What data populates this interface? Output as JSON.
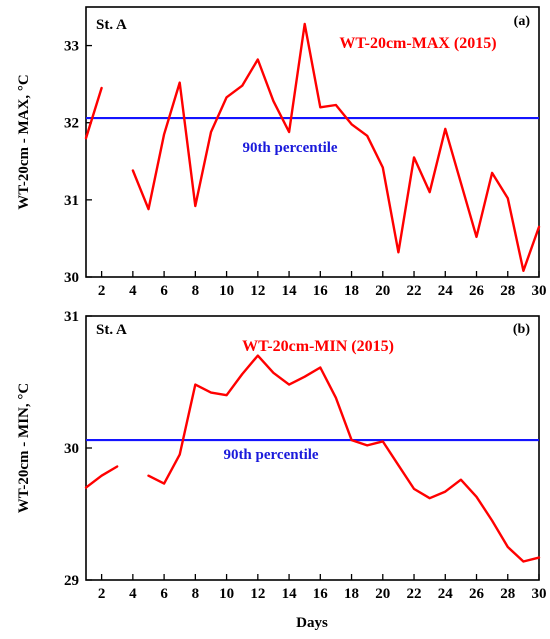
{
  "chart_data": [
    {
      "type": "line",
      "panel_label": "(a)",
      "station": "St. A",
      "title": "WT-20cm-MAX (2015)",
      "ylabel": "WT-20cm - MAX, °C",
      "xlabel": "",
      "xlim": [
        1,
        30
      ],
      "ylim": [
        30,
        33.5
      ],
      "x_ticks": [
        2,
        4,
        6,
        8,
        10,
        12,
        14,
        16,
        18,
        20,
        22,
        24,
        26,
        28,
        30
      ],
      "y_ticks": [
        30,
        31,
        32,
        33
      ],
      "series": [
        {
          "color": "#ff0000",
          "segments": [
            {
              "x": [
                1,
                2
              ],
              "y": [
                31.8,
                32.45
              ]
            },
            {
              "x": [
                4,
                5,
                6,
                7,
                8,
                9,
                10,
                11,
                12,
                13,
                14,
                15,
                16,
                17,
                18,
                19,
                20,
                21,
                22,
                23,
                24,
                25,
                26,
                27,
                28,
                29,
                30
              ],
              "y": [
                31.38,
                30.88,
                31.85,
                32.52,
                30.92,
                31.88,
                32.33,
                32.48,
                32.82,
                32.28,
                31.88,
                33.28,
                32.2,
                32.23,
                31.98,
                31.83,
                31.42,
                30.32,
                31.55,
                31.1,
                31.92,
                31.22,
                30.52,
                31.35,
                31.02,
                30.08,
                30.65
              ]
            }
          ]
        }
      ],
      "reference_line": {
        "label": "90th percentile",
        "y": 32.06,
        "color": "#1414ff"
      }
    },
    {
      "type": "line",
      "panel_label": "(b)",
      "station": "St. A",
      "title": "WT-20cm-MIN (2015)",
      "ylabel": "WT-20cm - MIN, °C",
      "xlabel": "Days",
      "xlim": [
        1,
        30
      ],
      "ylim": [
        29,
        31
      ],
      "x_ticks": [
        2,
        4,
        6,
        8,
        10,
        12,
        14,
        16,
        18,
        20,
        22,
        24,
        26,
        28,
        30
      ],
      "y_ticks": [
        29,
        30,
        31
      ],
      "series": [
        {
          "color": "#ff0000",
          "segments": [
            {
              "x": [
                1,
                2,
                3
              ],
              "y": [
                29.7,
                29.79,
                29.86
              ]
            },
            {
              "x": [
                5,
                6,
                7,
                8,
                9,
                10,
                11,
                12,
                13,
                14,
                15,
                16,
                17,
                18,
                19,
                20,
                21,
                22,
                23,
                24,
                25,
                26,
                27,
                28,
                29,
                30
              ],
              "y": [
                29.79,
                29.73,
                29.95,
                30.48,
                30.42,
                30.4,
                30.56,
                30.7,
                30.57,
                30.48,
                30.54,
                30.61,
                30.38,
                30.06,
                30.02,
                30.05,
                29.87,
                29.69,
                29.62,
                29.67,
                29.76,
                29.63,
                29.45,
                29.25,
                29.14,
                29.17
              ]
            }
          ]
        }
      ],
      "reference_line": {
        "label": "90th percentile",
        "y": 30.06,
        "color": "#1414ff"
      }
    }
  ]
}
